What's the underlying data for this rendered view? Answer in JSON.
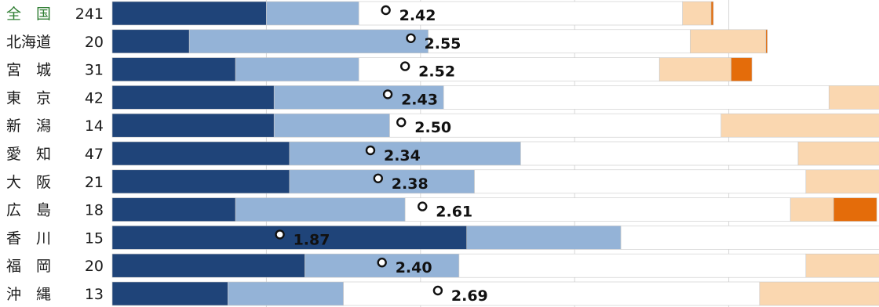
{
  "chart_data": {
    "type": "bar",
    "stacked": true,
    "orientation": "horizontal",
    "title": "",
    "xlabel": "",
    "ylabel": "",
    "grid": true,
    "rows": [
      {
        "region": "全　国",
        "n": "241",
        "segments": [
          20,
          12,
          42,
          3.7,
          0.3
        ],
        "mean": 2.42,
        "national": true
      },
      {
        "region": "北海道",
        "n": "20",
        "segments": [
          10,
          31,
          34,
          9.8,
          0.2
        ],
        "mean": 2.55
      },
      {
        "region": "宮　城",
        "n": "31",
        "segments": [
          16,
          16,
          39,
          9.3,
          2.7
        ],
        "mean": 2.52
      },
      {
        "region": "東　京",
        "n": "42",
        "segments": [
          21,
          22,
          50,
          7.0,
          0
        ],
        "mean": 2.43
      },
      {
        "region": "新　潟",
        "n": "14",
        "segments": [
          21,
          15,
          43,
          21,
          0
        ],
        "mean": 2.5
      },
      {
        "region": "愛　知",
        "n": "47",
        "segments": [
          23,
          30,
          36,
          11,
          0
        ],
        "mean": 2.34
      },
      {
        "region": "大　阪",
        "n": "21",
        "segments": [
          23,
          24,
          43,
          10,
          0
        ],
        "mean": 2.38
      },
      {
        "region": "広　島",
        "n": "18",
        "segments": [
          16,
          22,
          50,
          5.6,
          5.6
        ],
        "mean": 2.61
      },
      {
        "region": "香　川",
        "n": "15",
        "segments": [
          46,
          20,
          34,
          0,
          0
        ],
        "mean": 1.87
      },
      {
        "region": "福　岡",
        "n": "20",
        "segments": [
          25,
          20,
          45,
          10,
          0
        ],
        "mean": 2.4
      },
      {
        "region": "沖　縄",
        "n": "13",
        "segments": [
          15,
          15,
          54,
          16,
          0
        ],
        "mean": 2.69
      }
    ],
    "colors": [
      "#1f4479",
      "#94b3d7",
      "#ffffff",
      "#fad7b0",
      "#e46c0a"
    ],
    "xlim": [
      0,
      100
    ],
    "value_format": "2 decimals"
  }
}
